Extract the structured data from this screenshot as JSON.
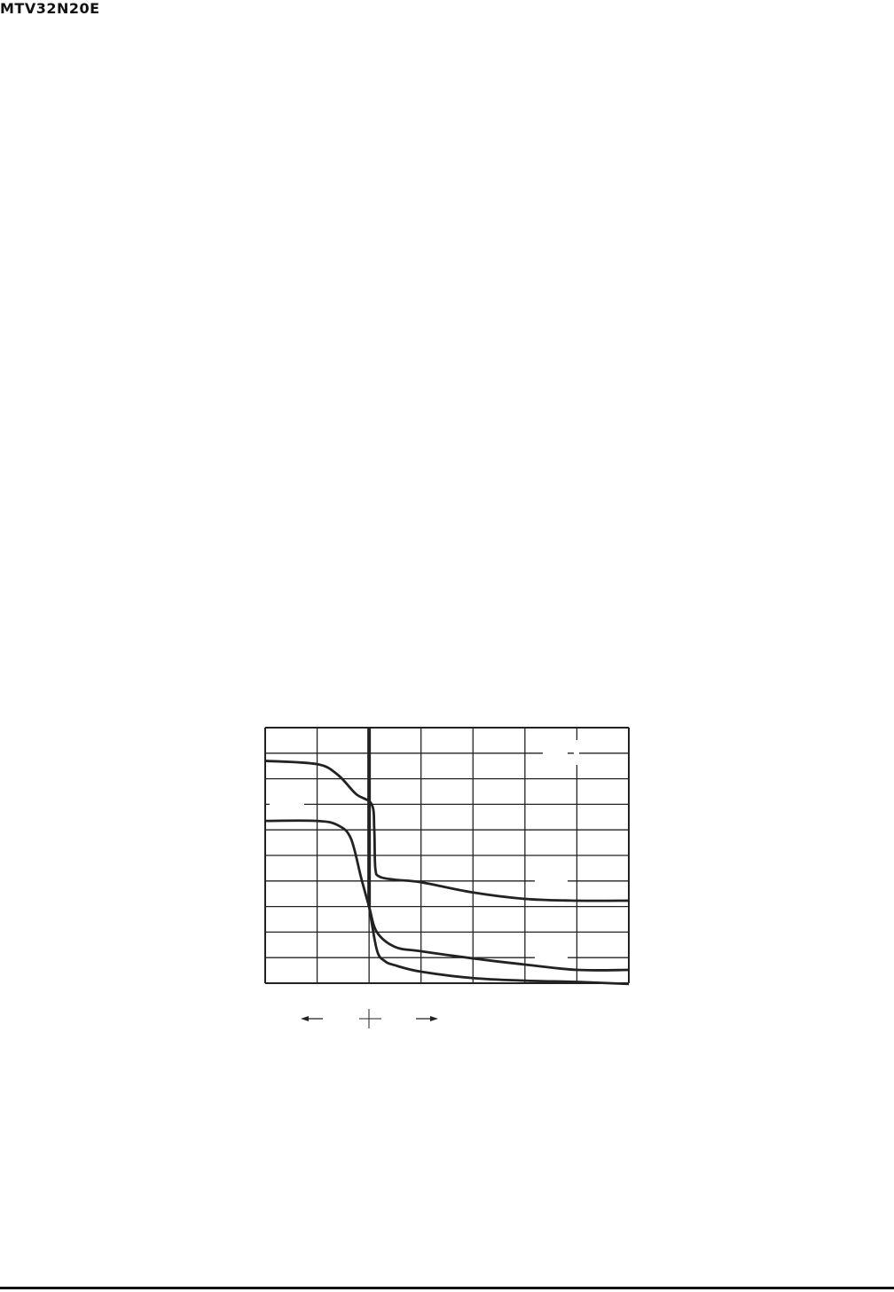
{
  "header": {
    "part_number": "MTV32N20E"
  },
  "chart_data": {
    "type": "line",
    "title": "",
    "xlabel": "",
    "ylabel": "",
    "xlim": [
      0,
      7
    ],
    "ylim": [
      0,
      10
    ],
    "grid": true,
    "x_divisions": 7,
    "y_divisions": 10,
    "reference_line_x": 2,
    "line_color": "#222222",
    "series": [
      {
        "values": [
          [
            0,
            8.7
          ],
          [
            1,
            8.57
          ],
          [
            1.4,
            8.15
          ],
          [
            1.75,
            7.4
          ],
          [
            2.05,
            7.0
          ],
          [
            2.1,
            6.0
          ],
          [
            2.12,
            4.5
          ],
          [
            2.2,
            4.17
          ],
          [
            2.5,
            4.05
          ],
          [
            3,
            3.95
          ],
          [
            4,
            3.55
          ],
          [
            5,
            3.3
          ],
          [
            6,
            3.23
          ],
          [
            7,
            3.23
          ]
        ]
      },
      {
        "values": [
          [
            0,
            6.35
          ],
          [
            1,
            6.35
          ],
          [
            1.4,
            6.18
          ],
          [
            1.65,
            5.66
          ],
          [
            1.85,
            4.1
          ],
          [
            2,
            3.0
          ],
          [
            2.15,
            2.0
          ],
          [
            2.5,
            1.42
          ],
          [
            3,
            1.25
          ],
          [
            4,
            0.97
          ],
          [
            5,
            0.73
          ],
          [
            6,
            0.52
          ],
          [
            7,
            0.52
          ]
        ]
      },
      {
        "values": [
          [
            2,
            3.0
          ],
          [
            2.15,
            1.3
          ],
          [
            2.3,
            0.87
          ],
          [
            2.5,
            0.7
          ],
          [
            3,
            0.45
          ],
          [
            4,
            0.2
          ],
          [
            5,
            0.1
          ],
          [
            6,
            0.05
          ],
          [
            7,
            -0.03
          ]
        ]
      }
    ],
    "below_axis_symbols": [
      "left-arrow",
      "cross",
      "right-arrow"
    ]
  }
}
